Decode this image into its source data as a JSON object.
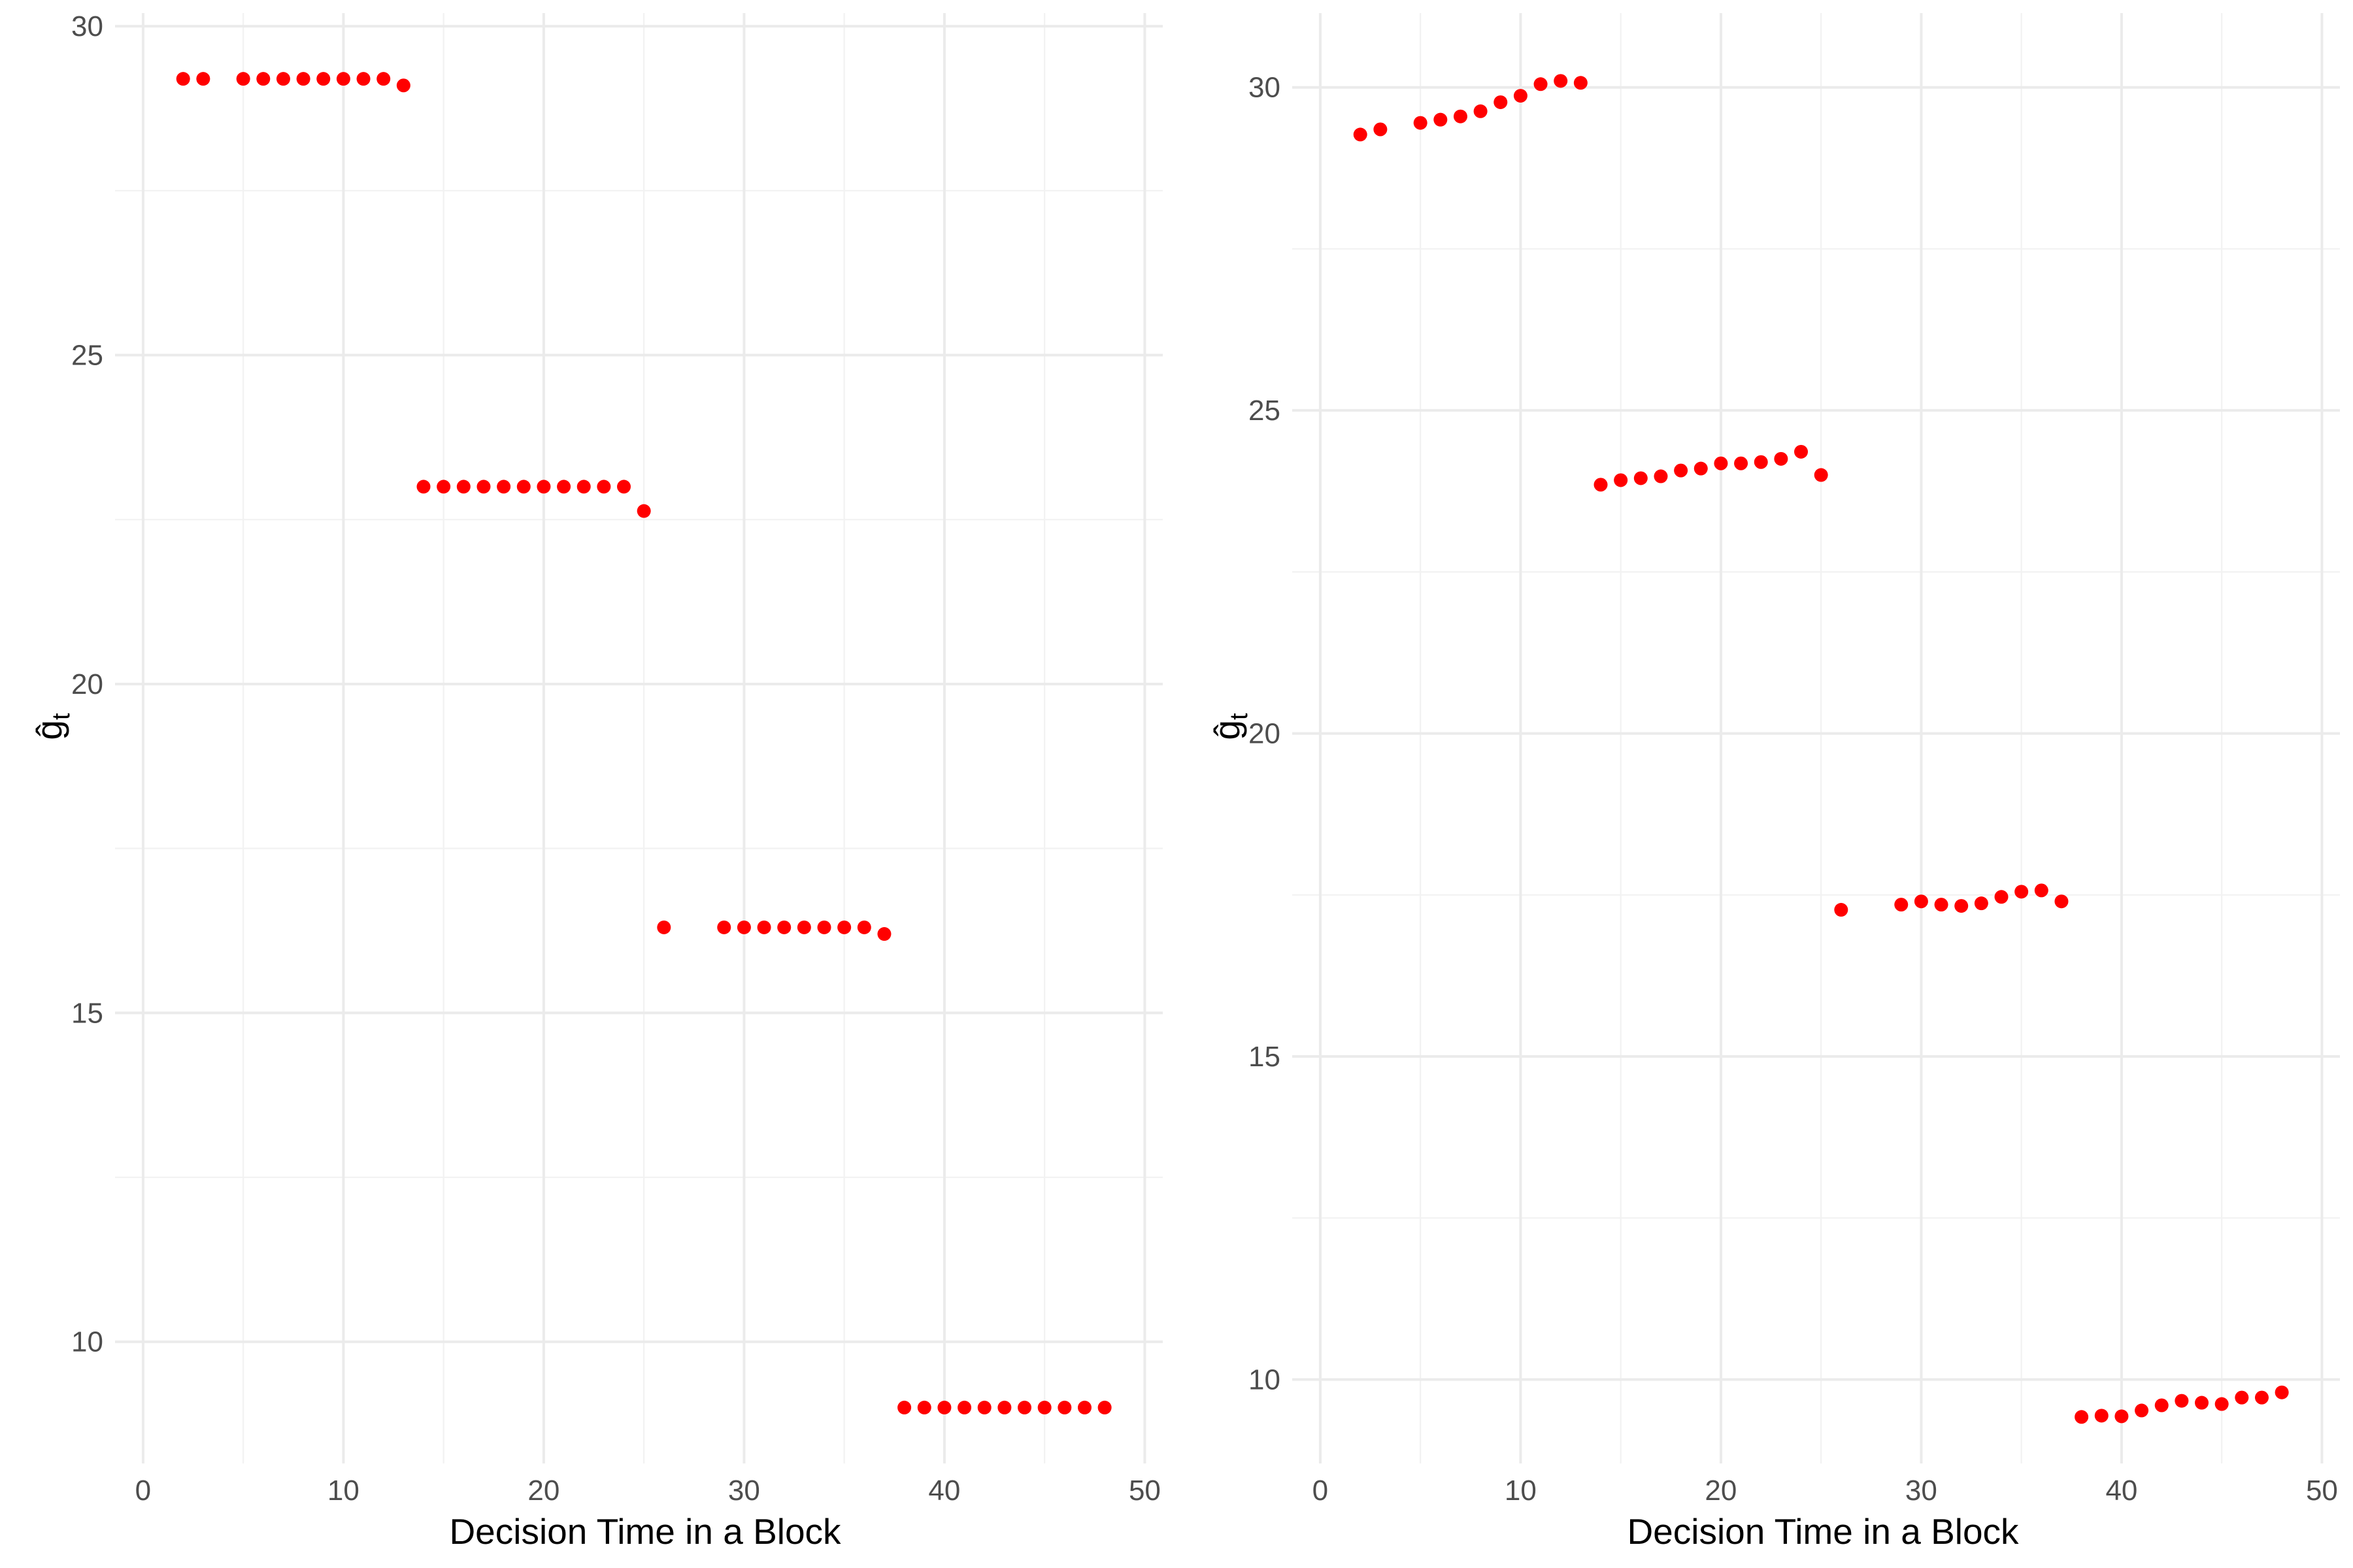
{
  "chart_data": [
    {
      "type": "scatter",
      "xlabel": "Decision Time in a Block",
      "ylabel": "ĝ",
      "ylabel_subscript": "t",
      "xlim": [
        -1.4,
        50.9
      ],
      "ylim": [
        8.15,
        30.2
      ],
      "x_ticks": [
        0,
        10,
        20,
        30,
        40,
        50
      ],
      "y_ticks": [
        10,
        15,
        20,
        25,
        30
      ],
      "grid": true,
      "point_color": "#ff0000",
      "points": [
        [
          2,
          29.2
        ],
        [
          3,
          29.2
        ],
        [
          5,
          29.2
        ],
        [
          6,
          29.2
        ],
        [
          7,
          29.2
        ],
        [
          8,
          29.2
        ],
        [
          9,
          29.2
        ],
        [
          10,
          29.2
        ],
        [
          11,
          29.2
        ],
        [
          12,
          29.2
        ],
        [
          13,
          29.1
        ],
        [
          14,
          23.0
        ],
        [
          15,
          23.0
        ],
        [
          16,
          23.0
        ],
        [
          17,
          23.0
        ],
        [
          18,
          23.0
        ],
        [
          19,
          23.0
        ],
        [
          20,
          23.0
        ],
        [
          21,
          23.0
        ],
        [
          22,
          23.0
        ],
        [
          23,
          23.0
        ],
        [
          24,
          23.0
        ],
        [
          25,
          22.63
        ],
        [
          26,
          16.3
        ],
        [
          29,
          16.3
        ],
        [
          30,
          16.3
        ],
        [
          31,
          16.3
        ],
        [
          32,
          16.3
        ],
        [
          33,
          16.3
        ],
        [
          34,
          16.3
        ],
        [
          35,
          16.3
        ],
        [
          36,
          16.3
        ],
        [
          37,
          16.2
        ],
        [
          38,
          9.0
        ],
        [
          39,
          9.0
        ],
        [
          40,
          9.0
        ],
        [
          41,
          9.0
        ],
        [
          42,
          9.0
        ],
        [
          43,
          9.0
        ],
        [
          44,
          9.0
        ],
        [
          45,
          9.0
        ],
        [
          46,
          9.0
        ],
        [
          47,
          9.0
        ],
        [
          48,
          9.0
        ]
      ]
    },
    {
      "type": "scatter",
      "xlabel": "Decision Time in a Block",
      "ylabel": "ĝ",
      "ylabel_subscript": "t",
      "xlim": [
        -1.4,
        50.9
      ],
      "ylim": [
        8.7,
        31.15
      ],
      "x_ticks": [
        0,
        10,
        20,
        30,
        40,
        50
      ],
      "y_ticks": [
        10,
        15,
        20,
        25,
        30
      ],
      "grid": true,
      "point_color": "#ff0000",
      "points": [
        [
          2,
          29.27
        ],
        [
          3,
          29.35
        ],
        [
          5,
          29.45
        ],
        [
          6,
          29.5
        ],
        [
          7,
          29.55
        ],
        [
          8,
          29.63
        ],
        [
          9,
          29.77
        ],
        [
          10,
          29.87
        ],
        [
          11,
          30.05
        ],
        [
          12,
          30.1
        ],
        [
          13,
          30.07
        ],
        [
          14,
          23.85
        ],
        [
          15,
          23.92
        ],
        [
          16,
          23.95
        ],
        [
          17,
          23.98
        ],
        [
          18,
          24.07
        ],
        [
          19,
          24.1
        ],
        [
          20,
          24.18
        ],
        [
          21,
          24.18
        ],
        [
          22,
          24.2
        ],
        [
          23,
          24.25
        ],
        [
          24,
          24.36
        ],
        [
          25,
          24.0
        ],
        [
          26,
          17.27
        ],
        [
          29,
          17.35
        ],
        [
          30,
          17.4
        ],
        [
          31,
          17.35
        ],
        [
          32,
          17.33
        ],
        [
          33,
          17.37
        ],
        [
          34,
          17.47
        ],
        [
          35,
          17.55
        ],
        [
          36,
          17.57
        ],
        [
          37,
          17.4
        ],
        [
          38,
          9.42
        ],
        [
          39,
          9.44
        ],
        [
          40,
          9.43
        ],
        [
          41,
          9.52
        ],
        [
          42,
          9.6
        ],
        [
          43,
          9.67
        ],
        [
          44,
          9.64
        ],
        [
          45,
          9.62
        ],
        [
          46,
          9.72
        ],
        [
          47,
          9.72
        ],
        [
          48,
          9.8
        ]
      ]
    }
  ]
}
